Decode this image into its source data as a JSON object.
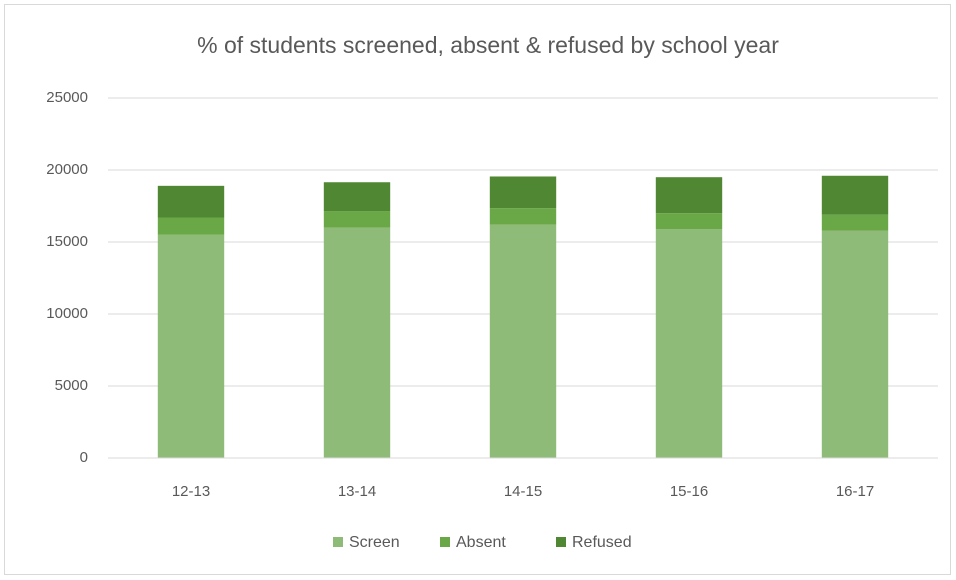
{
  "chart_data": {
    "type": "stacked-bar",
    "title": "% of students screened, absent & refused by school year",
    "categories": [
      "12-13",
      "13-14",
      "14-15",
      "15-16",
      "16-17"
    ],
    "series": [
      {
        "name": "Screen",
        "color": "#8fbb78",
        "values": [
          15500,
          16000,
          16200,
          15900,
          15800
        ]
      },
      {
        "name": "Absent",
        "color": "#6aa847",
        "values": [
          1200,
          1150,
          1150,
          1100,
          1100
        ]
      },
      {
        "name": "Refused",
        "color": "#4f8732",
        "values": [
          2200,
          2000,
          2200,
          2500,
          2700
        ]
      }
    ],
    "ylim": [
      0,
      25000
    ],
    "yticks": [
      0,
      5000,
      10000,
      15000,
      20000,
      25000
    ],
    "grid": true,
    "legend": "bottom"
  }
}
